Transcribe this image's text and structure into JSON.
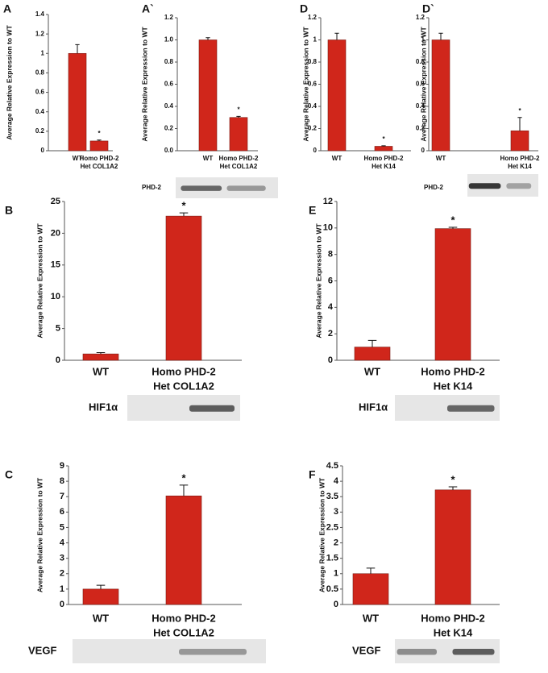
{
  "chart_data": [
    {
      "type": "bar",
      "panel_label": "A",
      "y_label": "Average Relative Expression to WT",
      "color": "#d0261b",
      "categories": [
        [
          "WT"
        ],
        [
          "Homo PHD-2",
          "Het COL1A2"
        ]
      ],
      "values": [
        1,
        0.1
      ],
      "errors": [
        0.09,
        0.01
      ],
      "significance_labels": [
        null,
        "*"
      ],
      "ylim": [
        0,
        1.4
      ],
      "yticks": [
        0,
        0.2,
        0.4,
        0.6,
        0.8,
        1,
        1.2,
        1.4
      ]
    },
    {
      "type": "bar",
      "panel_label": "A`",
      "y_label": "Average Relative Expression to WT",
      "color": "#d0261b",
      "categories": [
        [
          "WT"
        ],
        [
          "Homo PHD-2",
          "Het COL1A2"
        ]
      ],
      "values": [
        1.0,
        0.3
      ],
      "errors": [
        0.02,
        0.01
      ],
      "significance_labels": [
        null,
        "*"
      ],
      "ylim": [
        0,
        1.2
      ],
      "yticks": [
        {
          "value": 0,
          "label": "0.0"
        },
        0.2,
        0.4,
        0.6,
        0.8,
        {
          "value": 1,
          "label": "1.0"
        },
        1.2
      ],
      "blot_label": "PHD-2"
    },
    {
      "type": "bar",
      "panel_label": "D",
      "y_label": "Average Relative Expression to WT",
      "color": "#d0261b",
      "categories": [
        [
          "WT"
        ],
        [
          "Homo PHD-2",
          "Het K14"
        ]
      ],
      "values": [
        1,
        0.04
      ],
      "errors": [
        0.06,
        0.005
      ],
      "significance_labels": [
        null,
        "*"
      ],
      "ylim": [
        0,
        1.2
      ],
      "yticks": [
        0,
        0.2,
        0.4,
        0.6,
        0.8,
        1,
        1.2
      ]
    },
    {
      "type": "bar",
      "panel_label": "D`",
      "y_label": "Average Relative Expression to WT",
      "color": "#d0261b",
      "categories": [
        [
          "WT"
        ],
        [
          "Homo PHD-2",
          "Het K14"
        ]
      ],
      "values": [
        1,
        0.18
      ],
      "errors": [
        0.06,
        0.12
      ],
      "significance_labels": [
        null,
        "*"
      ],
      "ylim": [
        0,
        1.2
      ],
      "yticks": [
        0,
        0.2,
        0.4,
        0.6,
        0.8,
        1,
        1.2
      ],
      "blot_label": "PHD-2"
    },
    {
      "type": "bar",
      "panel_label": "B",
      "y_label": "Average Relative Expression to WT",
      "color": "#d0261b",
      "categories": [
        [
          "WT"
        ],
        [
          "Homo PHD-2",
          "Het COL1A2"
        ]
      ],
      "values": [
        1,
        22.7
      ],
      "errors": [
        0.2,
        0.5
      ],
      "significance_labels": [
        null,
        "*"
      ],
      "ylim": [
        0,
        25
      ],
      "yticks": [
        0,
        5,
        10,
        15,
        20,
        25
      ],
      "blot_label": "HIF1α"
    },
    {
      "type": "bar",
      "panel_label": "E",
      "y_label": "Average Relative Expression to WT",
      "color": "#d0261b",
      "categories": [
        [
          "WT"
        ],
        [
          "Homo PHD-2",
          "Het K14"
        ]
      ],
      "values": [
        1,
        9.95
      ],
      "errors": [
        0.5,
        0.1
      ],
      "significance_labels": [
        null,
        "*"
      ],
      "ylim": [
        0,
        12
      ],
      "yticks": [
        0,
        2,
        4,
        6,
        8,
        10,
        12
      ],
      "blot_label": "HIF1α"
    },
    {
      "type": "bar",
      "panel_label": "C",
      "y_label": "Average Relative Expression to WT",
      "color": "#d0261b",
      "categories": [
        [
          "WT"
        ],
        [
          "Homo PHD-2",
          "Het COL1A2"
        ]
      ],
      "values": [
        1,
        7.05
      ],
      "errors": [
        0.25,
        0.7
      ],
      "significance_labels": [
        null,
        "*"
      ],
      "ylim": [
        0,
        9
      ],
      "yticks": [
        0,
        1,
        2,
        3,
        4,
        5,
        6,
        7,
        8,
        9
      ],
      "blot_label": "VEGF"
    },
    {
      "type": "bar",
      "panel_label": "F",
      "y_label": "Average Relative Expression to WT",
      "color": "#d0261b",
      "categories": [
        [
          "WT"
        ],
        [
          "Homo PHD-2",
          "Het K14"
        ]
      ],
      "values": [
        1,
        3.72
      ],
      "errors": [
        0.18,
        0.1
      ],
      "significance_labels": [
        null,
        "*"
      ],
      "ylim": [
        0,
        4.5
      ],
      "yticks": [
        0,
        0.5,
        1,
        1.5,
        2,
        2.5,
        3,
        3.5,
        4,
        4.5
      ],
      "blot_label": "VEGF"
    }
  ]
}
